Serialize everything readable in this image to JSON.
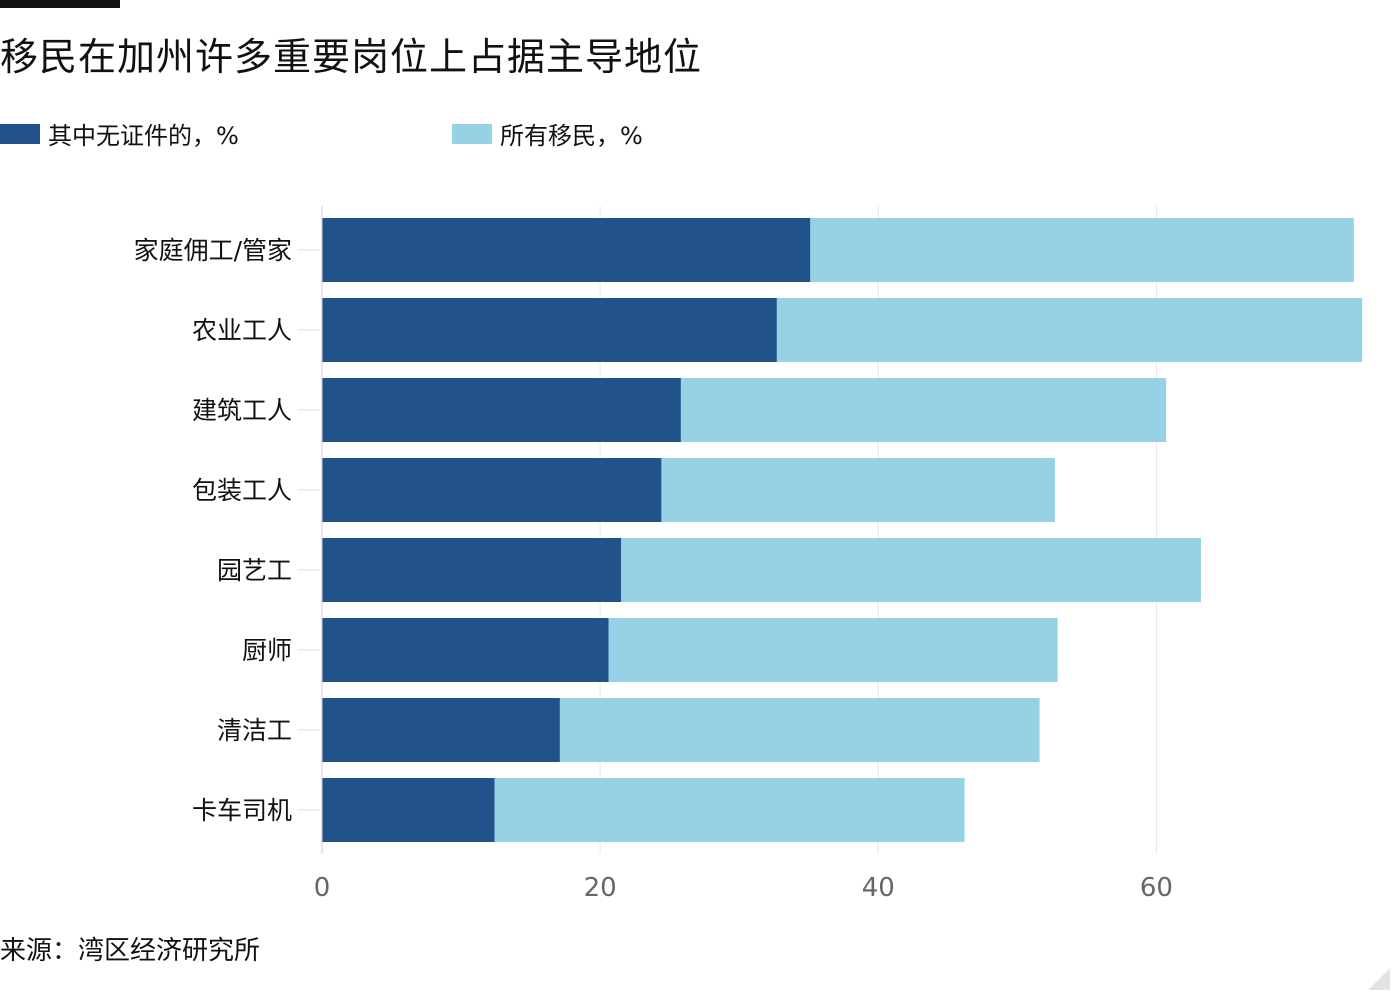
{
  "header": {
    "title": "移民在加州许多重要岗位上占据主导地位"
  },
  "legend": {
    "items": [
      {
        "label": "其中无证件的，%",
        "color": "#21528a"
      },
      {
        "label": "所有移民，%",
        "color": "#96d1e6"
      }
    ]
  },
  "footer": {
    "source": "来源：湾区经济研究所"
  },
  "chart_data": {
    "type": "bar",
    "orientation": "horizontal",
    "stacked": false,
    "overlaid": true,
    "categories": [
      "家庭佣工/管家",
      "农业工人",
      "建筑工人",
      "包装工人",
      "园艺工",
      "厨师",
      "清洁工",
      "卡车司机"
    ],
    "series": [
      {
        "name": "所有移民，%",
        "color": "#96d1e6",
        "values": [
          74.2,
          74.8,
          60.7,
          52.7,
          63.2,
          52.9,
          51.6,
          46.2
        ]
      },
      {
        "name": "其中无证件的，%",
        "color": "#21528a",
        "values": [
          35.1,
          32.7,
          25.8,
          24.4,
          21.5,
          20.6,
          17.1,
          12.4
        ]
      }
    ],
    "xlim": [
      0,
      75
    ],
    "xticks": [
      0,
      20,
      40,
      60
    ],
    "xtick_labels": [
      "0",
      "20",
      "40",
      "60"
    ],
    "grid": "vertical",
    "legend_position": "top-left"
  }
}
